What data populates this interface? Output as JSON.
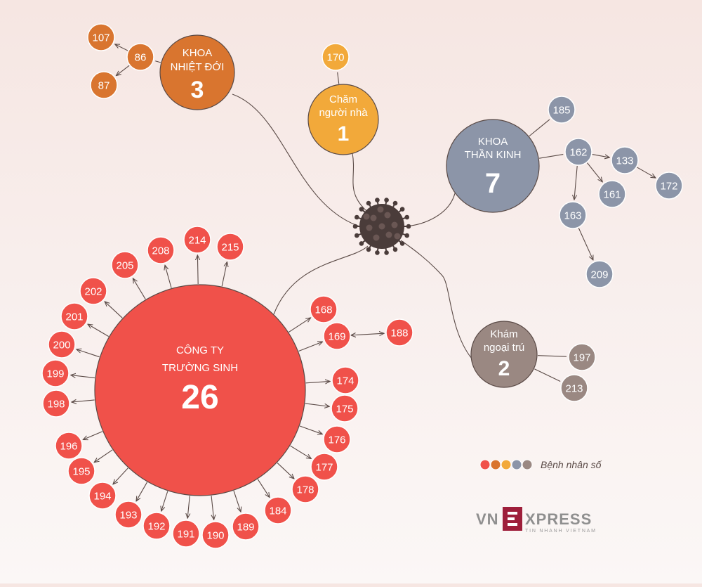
{
  "colors": {
    "red": "#f0514a",
    "orange": "#d9752f",
    "yellow": "#f2a93a",
    "blue": "#8c95a8",
    "brown": "#9a8882",
    "virus": "#4a3c3a",
    "line": "#5a4a46"
  },
  "virus": {
    "icon": "coronavirus-icon"
  },
  "clusters": [
    {
      "id": "truong-sinh",
      "title_lines": [
        "CÔNG TY",
        "TRƯỜNG SINH"
      ],
      "count": "26",
      "color": "red"
    },
    {
      "id": "nhiet-doi",
      "title_lines": [
        "KHOA",
        "NHIỆT ĐỚI"
      ],
      "count": "3",
      "color": "orange"
    },
    {
      "id": "cham-nguoi-nha",
      "title_lines": [
        "Chăm",
        "người nhà"
      ],
      "count": "1",
      "color": "yellow"
    },
    {
      "id": "than-kinh",
      "title_lines": [
        "KHOA",
        "THẦN KINH"
      ],
      "count": "7",
      "color": "blue"
    },
    {
      "id": "ngoai-tru",
      "title_lines": [
        "Khám",
        "ngoại trú"
      ],
      "count": "2",
      "color": "brown"
    }
  ],
  "patients": [
    {
      "label": "107",
      "color": "orange"
    },
    {
      "label": "86",
      "color": "orange"
    },
    {
      "label": "87",
      "color": "orange"
    },
    {
      "label": "170",
      "color": "yellow"
    },
    {
      "label": "185",
      "color": "blue"
    },
    {
      "label": "162",
      "color": "blue"
    },
    {
      "label": "133",
      "color": "blue"
    },
    {
      "label": "172",
      "color": "blue"
    },
    {
      "label": "161",
      "color": "blue"
    },
    {
      "label": "163",
      "color": "blue"
    },
    {
      "label": "209",
      "color": "blue"
    },
    {
      "label": "197",
      "color": "brown"
    },
    {
      "label": "213",
      "color": "brown"
    },
    {
      "label": "214",
      "color": "red"
    },
    {
      "label": "215",
      "color": "red"
    },
    {
      "label": "208",
      "color": "red"
    },
    {
      "label": "205",
      "color": "red"
    },
    {
      "label": "202",
      "color": "red"
    },
    {
      "label": "201",
      "color": "red"
    },
    {
      "label": "200",
      "color": "red"
    },
    {
      "label": "199",
      "color": "red"
    },
    {
      "label": "198",
      "color": "red"
    },
    {
      "label": "196",
      "color": "red"
    },
    {
      "label": "195",
      "color": "red"
    },
    {
      "label": "194",
      "color": "red"
    },
    {
      "label": "193",
      "color": "red"
    },
    {
      "label": "192",
      "color": "red"
    },
    {
      "label": "191",
      "color": "red"
    },
    {
      "label": "190",
      "color": "red"
    },
    {
      "label": "189",
      "color": "red"
    },
    {
      "label": "184",
      "color": "red"
    },
    {
      "label": "178",
      "color": "red"
    },
    {
      "label": "177",
      "color": "red"
    },
    {
      "label": "176",
      "color": "red"
    },
    {
      "label": "175",
      "color": "red"
    },
    {
      "label": "174",
      "color": "red"
    },
    {
      "label": "169",
      "color": "red"
    },
    {
      "label": "188",
      "color": "red"
    },
    {
      "label": "168",
      "color": "red"
    }
  ],
  "edges": [
    {
      "from": "86",
      "to": "107"
    },
    {
      "from": "86",
      "to": "87"
    },
    {
      "from": "162",
      "to": "133"
    },
    {
      "from": "133",
      "to": "172"
    },
    {
      "from": "162",
      "to": "161"
    },
    {
      "from": "162",
      "to": "163"
    },
    {
      "from": "163",
      "to": "209"
    },
    {
      "from": "169",
      "to": "188",
      "both": true
    }
  ],
  "legend": {
    "text": "Bệnh nhân số",
    "dots": [
      "red",
      "orange",
      "yellow",
      "blue",
      "brown"
    ]
  },
  "brand": {
    "logo_text": "VNEXPRESS",
    "tagline": "TIN NHANH VIETNAM"
  }
}
